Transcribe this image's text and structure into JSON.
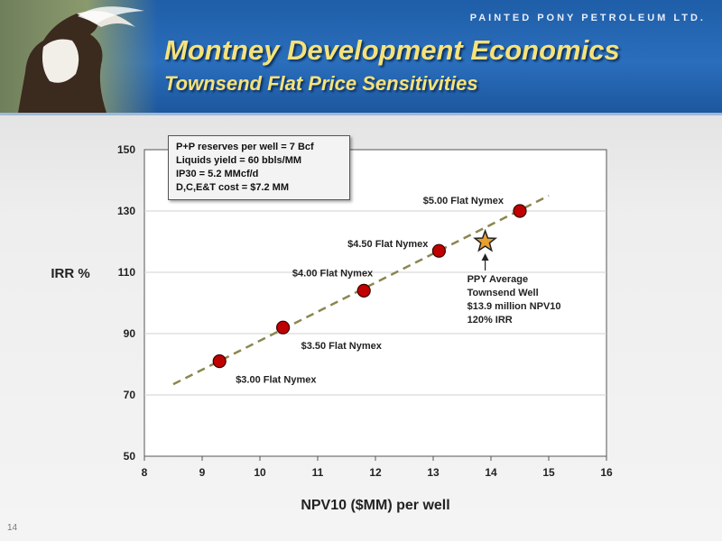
{
  "header": {
    "company": "PAINTED PONY PETROLEUM LTD.",
    "title": "Montney Development Economics",
    "subtitle": "Townsend Flat Price Sensitivities"
  },
  "page_number": "14",
  "notes": [
    "P+P reserves per well = 7 Bcf",
    "Liquids yield = 60 bbls/MM",
    "IP30 = 5.2 MMcf/d",
    "D,C,E&T cost = $7.2 MM"
  ],
  "colors": {
    "header_blue": "#2a6ebc",
    "title_yellow": "#f6e27a",
    "point_red": "#c00000",
    "trend_olive": "#8b8650",
    "star_orange": "#e8a030"
  },
  "chart_data": {
    "type": "scatter",
    "xlabel": "NPV10 ($MM) per well",
    "ylabel": "IRR %",
    "xlim": [
      8,
      16
    ],
    "ylim": [
      50,
      150
    ],
    "xticks": [
      8,
      9,
      10,
      11,
      12,
      13,
      14,
      15,
      16
    ],
    "yticks": [
      50,
      70,
      90,
      110,
      130,
      150
    ],
    "grid": "horizontal",
    "series": [
      {
        "points": [
          {
            "x": 9.3,
            "y": 81,
            "label": "$3.00 Flat Nymex"
          },
          {
            "x": 10.4,
            "y": 92,
            "label": "$3.50 Flat Nymex"
          },
          {
            "x": 11.8,
            "y": 104,
            "label": "$4.00 Flat Nymex"
          },
          {
            "x": 13.1,
            "y": 117,
            "label": "$4.50 Flat Nymex"
          },
          {
            "x": 14.5,
            "y": 130,
            "label": "$5.00 Flat Nymex"
          }
        ]
      }
    ],
    "trendline": {
      "x": [
        8.5,
        15.0
      ],
      "y": [
        73.5,
        135.0
      ],
      "style": "dashed"
    },
    "annotation": {
      "x": 13.9,
      "y": 120,
      "lines": [
        "PPY Average",
        "Townsend Well",
        "$13.9 million NPV10",
        "120% IRR"
      ]
    }
  }
}
